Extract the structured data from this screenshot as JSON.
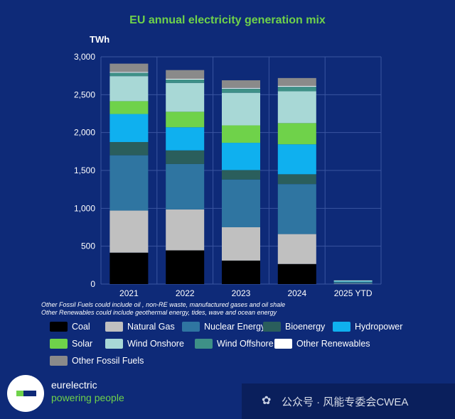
{
  "chart_data": {
    "type": "bar",
    "stacked": true,
    "title": "EU annual electricity generation mix",
    "ylabel": "TWh",
    "ylim": [
      0,
      3000
    ],
    "yticks": [
      "0",
      "500",
      "1,000",
      "1,500",
      "2,000",
      "2,500",
      "3,000"
    ],
    "ytick_values": [
      0,
      500,
      1000,
      1500,
      2000,
      2500,
      3000
    ],
    "categories": [
      "2021",
      "2022",
      "2023",
      "2024",
      "2025 YTD"
    ],
    "grid": true,
    "legend_position": "bottom",
    "series": [
      {
        "name": "Coal",
        "color": "#000000",
        "values": [
          415,
          445,
          310,
          265,
          3
        ]
      },
      {
        "name": "Natural Gas",
        "color": "#c0c0c0",
        "values": [
          555,
          540,
          440,
          395,
          5
        ]
      },
      {
        "name": "Nuclear Energy",
        "color": "#2f75a1",
        "values": [
          730,
          600,
          630,
          660,
          15
        ]
      },
      {
        "name": "Bioenergy",
        "color": "#2a5e5c",
        "values": [
          175,
          180,
          125,
          130,
          5
        ]
      },
      {
        "name": "Hydropower",
        "color": "#0fb0ef",
        "values": [
          370,
          305,
          360,
          395,
          5
        ]
      },
      {
        "name": "Solar",
        "color": "#6fd24a",
        "values": [
          170,
          205,
          230,
          280,
          2
        ]
      },
      {
        "name": "Wind Onshore",
        "color": "#a8d8d6",
        "values": [
          330,
          380,
          430,
          420,
          12
        ]
      },
      {
        "name": "Wind Offshore",
        "color": "#3e9087",
        "values": [
          45,
          45,
          55,
          60,
          2
        ]
      },
      {
        "name": "Other Renewables",
        "color": "#ffffff",
        "values": [
          10,
          10,
          10,
          10,
          0
        ]
      },
      {
        "name": "Other Fossil Fuels",
        "color": "#8a8a8a",
        "values": [
          110,
          115,
          100,
          105,
          1
        ]
      }
    ]
  },
  "chart_notes": [
    "Other Fossil Fuels could include oil , non-RE waste, manufactured gases and oil shale",
    "Other Renewables could include geothermal energy, tides, wave and ocean energy"
  ],
  "brand": {
    "name": "eurelectric",
    "tagline": "powering people"
  },
  "watermark": {
    "icon": "wechat-icon",
    "text": "公众号 · 风能专委会CWEA"
  }
}
